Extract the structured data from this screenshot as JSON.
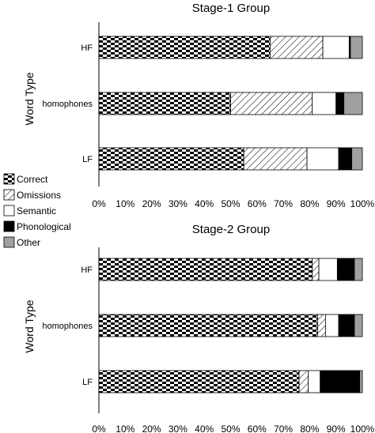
{
  "chart_data": [
    {
      "type": "bar",
      "orientation": "horizontal",
      "stacked": true,
      "title": "Stage-1 Group",
      "ylabel": "Word Type",
      "xlabel": "",
      "xlim": [
        0,
        100
      ],
      "x_ticks": [
        "0%",
        "10%",
        "20%",
        "30%",
        "40%",
        "50%",
        "60%",
        "70%",
        "80%",
        "90%",
        "100%"
      ],
      "categories": [
        "HF",
        "homophones",
        "LF"
      ],
      "series": [
        {
          "name": "Correct",
          "values": [
            65,
            50,
            55
          ]
        },
        {
          "name": "Omissions",
          "values": [
            20,
            31,
            24
          ]
        },
        {
          "name": "Semantic",
          "values": [
            10,
            9,
            12
          ]
        },
        {
          "name": "Phonological",
          "values": [
            0.5,
            3,
            5
          ]
        },
        {
          "name": "Other",
          "values": [
            4.5,
            7,
            4
          ]
        }
      ]
    },
    {
      "type": "bar",
      "orientation": "horizontal",
      "stacked": true,
      "title": "Stage-2 Group",
      "ylabel": "Word Type",
      "xlabel": "",
      "xlim": [
        0,
        100
      ],
      "x_ticks": [
        "0%",
        "10%",
        "20%",
        "30%",
        "40%",
        "50%",
        "60%",
        "70%",
        "80%",
        "90%",
        "100%"
      ],
      "categories": [
        "HF",
        "homophones",
        "LF"
      ],
      "series": [
        {
          "name": "Correct",
          "values": [
            81,
            83,
            76
          ]
        },
        {
          "name": "Omissions",
          "values": [
            2.5,
            3,
            3.5
          ]
        },
        {
          "name": "Semantic",
          "values": [
            7,
            5,
            4.5
          ]
        },
        {
          "name": "Phonological",
          "values": [
            6.5,
            6,
            15
          ]
        },
        {
          "name": "Other",
          "values": [
            3,
            3,
            1
          ]
        }
      ]
    }
  ],
  "legend": {
    "items": [
      {
        "label": "Correct",
        "fill": "checker"
      },
      {
        "label": "Omissions",
        "fill": "diagonal"
      },
      {
        "label": "Semantic",
        "fill": "#ffffff"
      },
      {
        "label": "Phonological",
        "fill": "#000000"
      },
      {
        "label": "Other",
        "fill": "#a0a0a0"
      }
    ],
    "placement": "left-middle"
  }
}
